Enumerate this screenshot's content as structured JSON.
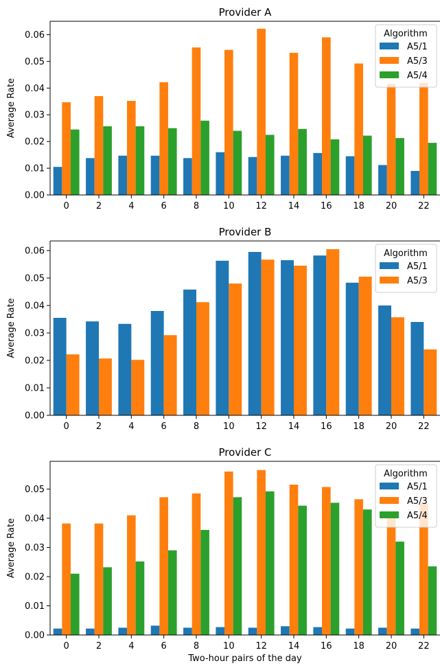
{
  "chart_data": [
    {
      "type": "bar",
      "title": "Provider A",
      "xlabel": "",
      "ylabel": "Average Rate",
      "categories": [
        "0",
        "2",
        "4",
        "6",
        "8",
        "10",
        "12",
        "14",
        "16",
        "18",
        "20",
        "22"
      ],
      "ylim": [
        0,
        0.065
      ],
      "yticks": [
        "0.00",
        "0.01",
        "0.02",
        "0.03",
        "0.04",
        "0.05",
        "0.06"
      ],
      "legend": {
        "title": "Algorithm",
        "position": "top-right"
      },
      "series": [
        {
          "name": "A5/1",
          "color": "#1f77b4",
          "values": [
            0.0105,
            0.0138,
            0.0147,
            0.0147,
            0.0138,
            0.016,
            0.0142,
            0.0147,
            0.0157,
            0.0145,
            0.0112,
            0.009
          ]
        },
        {
          "name": "A5/3",
          "color": "#ff7f0e",
          "values": [
            0.0347,
            0.037,
            0.0352,
            0.0422,
            0.0552,
            0.0543,
            0.0622,
            0.0532,
            0.059,
            0.0492,
            0.0415,
            0.042
          ]
        },
        {
          "name": "A5/4",
          "color": "#2ca02c",
          "values": [
            0.0245,
            0.0257,
            0.0257,
            0.025,
            0.0278,
            0.024,
            0.0225,
            0.0247,
            0.0208,
            0.0222,
            0.0213,
            0.0195
          ]
        }
      ]
    },
    {
      "type": "bar",
      "title": "Provider B",
      "xlabel": "",
      "ylabel": "Average Rate",
      "categories": [
        "0",
        "2",
        "4",
        "6",
        "8",
        "10",
        "12",
        "14",
        "16",
        "18",
        "20",
        "22"
      ],
      "ylim": [
        0,
        0.0635
      ],
      "yticks": [
        "0.00",
        "0.01",
        "0.02",
        "0.03",
        "0.04",
        "0.05",
        "0.06"
      ],
      "legend": {
        "title": "Algorithm",
        "position": "top-right"
      },
      "series": [
        {
          "name": "A5/1",
          "color": "#1f77b4",
          "values": [
            0.0355,
            0.0342,
            0.0333,
            0.038,
            0.0458,
            0.0563,
            0.0595,
            0.0565,
            0.0582,
            0.0483,
            0.04,
            0.034
          ]
        },
        {
          "name": "A5/3",
          "color": "#ff7f0e",
          "values": [
            0.0222,
            0.0207,
            0.0202,
            0.0292,
            0.0412,
            0.048,
            0.0567,
            0.0545,
            0.0605,
            0.0505,
            0.0357,
            0.024
          ]
        }
      ]
    },
    {
      "type": "bar",
      "title": "Provider C",
      "xlabel": "Two-hour pairs of the day",
      "ylabel": "Average Rate",
      "categories": [
        "0",
        "2",
        "4",
        "6",
        "8",
        "10",
        "12",
        "14",
        "16",
        "18",
        "20",
        "22"
      ],
      "ylim": [
        0,
        0.0595
      ],
      "yticks": [
        "0.00",
        "0.01",
        "0.02",
        "0.03",
        "0.04",
        "0.05"
      ],
      "legend": {
        "title": "Algorithm",
        "position": "top-right"
      },
      "series": [
        {
          "name": "A5/1",
          "color": "#1f77b4",
          "values": [
            0.0022,
            0.0022,
            0.0025,
            0.0032,
            0.0025,
            0.0027,
            0.0025,
            0.003,
            0.0027,
            0.0022,
            0.0025,
            0.0022
          ]
        },
        {
          "name": "A5/3",
          "color": "#ff7f0e",
          "values": [
            0.0382,
            0.0382,
            0.041,
            0.0472,
            0.0485,
            0.056,
            0.0565,
            0.0515,
            0.0507,
            0.0465,
            0.04,
            0.045
          ]
        },
        {
          "name": "A5/4",
          "color": "#2ca02c",
          "values": [
            0.021,
            0.0232,
            0.0252,
            0.029,
            0.036,
            0.0472,
            0.0492,
            0.0443,
            0.0453,
            0.043,
            0.032,
            0.0235
          ]
        }
      ]
    }
  ]
}
